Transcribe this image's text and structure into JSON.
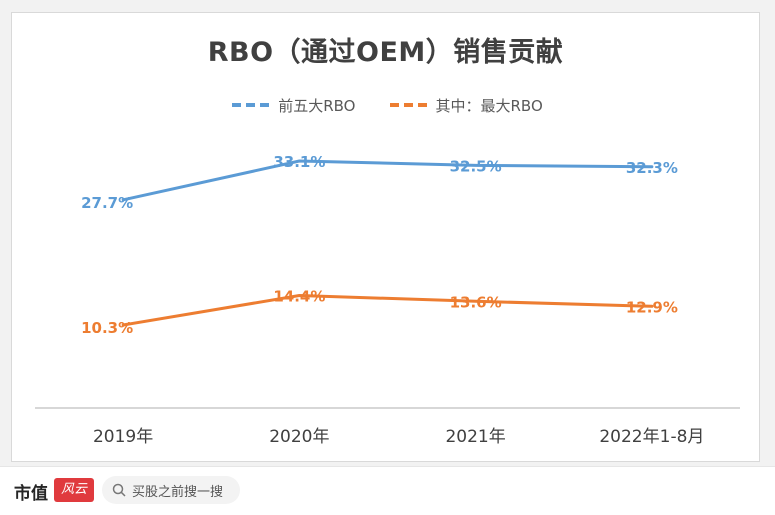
{
  "chart_data": {
    "type": "line",
    "title": "RBO（通过OEM）销售贡献",
    "categories": [
      "2019年",
      "2020年",
      "2021年",
      "2022年1-8月"
    ],
    "series": [
      {
        "name": "前五大RBO",
        "values": [
          27.7,
          33.1,
          32.5,
          32.3
        ],
        "labels": [
          "27.7%",
          "33.1%",
          "32.5%",
          "32.3%"
        ],
        "color": "#5b9bd5",
        "legend_dash": true
      },
      {
        "name": "其中：最大RBO",
        "values": [
          10.3,
          14.4,
          13.6,
          12.9
        ],
        "labels": [
          "10.3%",
          "14.4%",
          "13.6%",
          "12.9%"
        ],
        "color": "#ed7d31",
        "legend_dash": true
      }
    ],
    "ylim": [
      0,
      38
    ],
    "grid": false,
    "legend_position": "top",
    "data_labels": true
  },
  "footer": {
    "brand": "市值",
    "brand_logo": "风云",
    "search_placeholder": "买股之前搜一搜",
    "search_icon": "search-icon"
  },
  "colors": {
    "axis": "#bfbfbf",
    "tick_text": "#404040"
  }
}
